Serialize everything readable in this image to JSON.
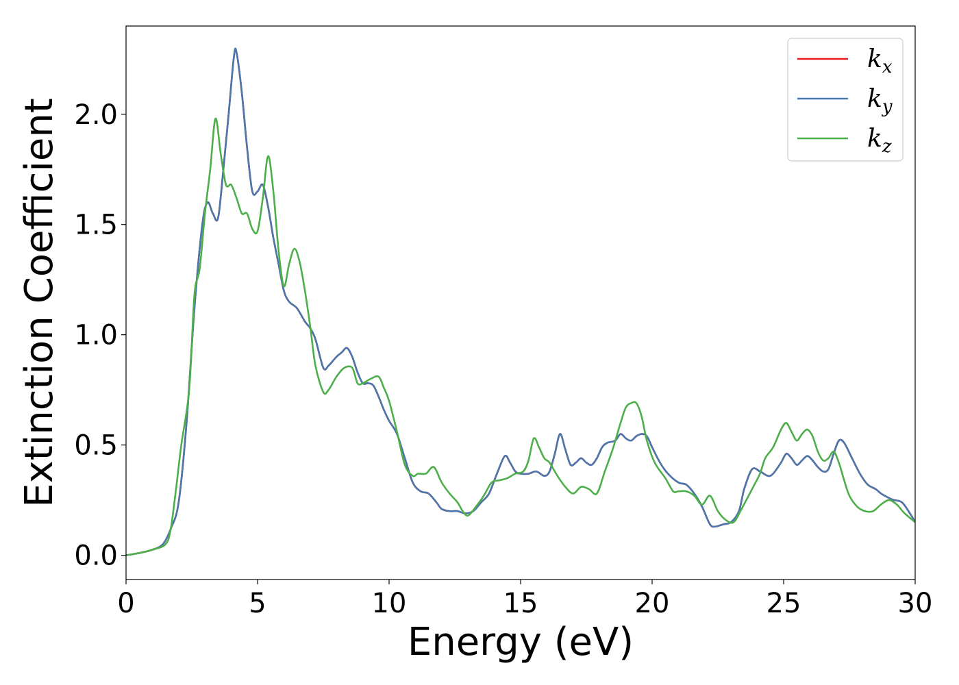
{
  "chart_data": {
    "type": "line",
    "xlabel": "Energy (eV)",
    "ylabel": "Extinction Coefficient",
    "xlim": [
      0,
      30
    ],
    "ylim": [
      -0.11,
      2.4
    ],
    "xticks": [
      0,
      5,
      10,
      15,
      20,
      25,
      30
    ],
    "xtick_labels": [
      "0",
      "5",
      "10",
      "15",
      "20",
      "25",
      "30"
    ],
    "yticks": [
      0.0,
      0.5,
      1.0,
      1.5,
      2.0
    ],
    "ytick_labels": [
      "0.0",
      "0.5",
      "1.0",
      "1.5",
      "2.0"
    ],
    "grid": false,
    "legend_position": "top-right",
    "series": [
      {
        "name": "k_x",
        "legend_base": "k",
        "legend_sub": "x",
        "color": "#e41a1c",
        "x": [
          0,
          0.5,
          1.0,
          1.4,
          1.7,
          2.0,
          2.3,
          2.6,
          2.9,
          3.1,
          3.3,
          3.5,
          3.7,
          3.9,
          4.1,
          4.2,
          4.4,
          4.6,
          4.8,
          5.0,
          5.2,
          5.4,
          5.6,
          5.8,
          6.0,
          6.2,
          6.5,
          6.8,
          7.0,
          7.2,
          7.5,
          7.7,
          8.0,
          8.2,
          8.4,
          8.6,
          8.8,
          9.0,
          9.2,
          9.4,
          9.6,
          9.8,
          10.0,
          10.3,
          10.6,
          10.9,
          11.2,
          11.5,
          11.8,
          12.0,
          12.3,
          12.6,
          12.9,
          13.2,
          13.5,
          13.8,
          14.1,
          14.4,
          14.6,
          14.8,
          15.0,
          15.3,
          15.6,
          15.9,
          16.1,
          16.3,
          16.5,
          16.7,
          16.9,
          17.1,
          17.3,
          17.5,
          17.7,
          17.9,
          18.1,
          18.3,
          18.6,
          18.8,
          19.0,
          19.2,
          19.4,
          19.6,
          19.8,
          20.0,
          20.3,
          20.6,
          21.0,
          21.3,
          21.6,
          21.9,
          22.2,
          22.4,
          22.7,
          23.0,
          23.3,
          23.5,
          23.8,
          24.1,
          24.4,
          24.6,
          24.9,
          25.1,
          25.3,
          25.5,
          25.7,
          25.9,
          26.1,
          26.3,
          26.5,
          26.7,
          26.9,
          27.1,
          27.3,
          27.6,
          27.9,
          28.2,
          28.5,
          28.7,
          29.0,
          29.2,
          29.5,
          29.8,
          30.0
        ],
        "y": [
          0,
          0.01,
          0.025,
          0.05,
          0.12,
          0.24,
          0.6,
          1.12,
          1.5,
          1.6,
          1.55,
          1.53,
          1.75,
          2.0,
          2.26,
          2.28,
          2.1,
          1.85,
          1.65,
          1.65,
          1.68,
          1.58,
          1.44,
          1.32,
          1.2,
          1.15,
          1.12,
          1.06,
          1.03,
          0.98,
          0.85,
          0.86,
          0.9,
          0.92,
          0.94,
          0.9,
          0.83,
          0.78,
          0.78,
          0.77,
          0.72,
          0.66,
          0.61,
          0.55,
          0.44,
          0.33,
          0.29,
          0.28,
          0.24,
          0.21,
          0.2,
          0.2,
          0.19,
          0.2,
          0.24,
          0.28,
          0.37,
          0.45,
          0.42,
          0.38,
          0.37,
          0.37,
          0.38,
          0.36,
          0.38,
          0.46,
          0.55,
          0.48,
          0.41,
          0.42,
          0.44,
          0.42,
          0.41,
          0.44,
          0.49,
          0.51,
          0.52,
          0.55,
          0.53,
          0.52,
          0.54,
          0.55,
          0.54,
          0.49,
          0.42,
          0.37,
          0.33,
          0.32,
          0.28,
          0.22,
          0.14,
          0.13,
          0.14,
          0.15,
          0.2,
          0.3,
          0.39,
          0.38,
          0.36,
          0.37,
          0.42,
          0.46,
          0.44,
          0.41,
          0.43,
          0.45,
          0.43,
          0.4,
          0.38,
          0.39,
          0.46,
          0.52,
          0.51,
          0.44,
          0.37,
          0.32,
          0.3,
          0.28,
          0.26,
          0.25,
          0.24,
          0.19,
          0.15
        ]
      },
      {
        "name": "k_y",
        "legend_base": "k",
        "legend_sub": "y",
        "color": "#4a78ad",
        "x": [
          0,
          0.5,
          1.0,
          1.4,
          1.7,
          2.0,
          2.3,
          2.6,
          2.9,
          3.1,
          3.3,
          3.5,
          3.7,
          3.9,
          4.1,
          4.2,
          4.4,
          4.6,
          4.8,
          5.0,
          5.2,
          5.4,
          5.6,
          5.8,
          6.0,
          6.2,
          6.5,
          6.8,
          7.0,
          7.2,
          7.5,
          7.7,
          8.0,
          8.2,
          8.4,
          8.6,
          8.8,
          9.0,
          9.2,
          9.4,
          9.6,
          9.8,
          10.0,
          10.3,
          10.6,
          10.9,
          11.2,
          11.5,
          11.8,
          12.0,
          12.3,
          12.6,
          12.9,
          13.2,
          13.5,
          13.8,
          14.1,
          14.4,
          14.6,
          14.8,
          15.0,
          15.3,
          15.6,
          15.9,
          16.1,
          16.3,
          16.5,
          16.7,
          16.9,
          17.1,
          17.3,
          17.5,
          17.7,
          17.9,
          18.1,
          18.3,
          18.6,
          18.8,
          19.0,
          19.2,
          19.4,
          19.6,
          19.8,
          20.0,
          20.3,
          20.6,
          21.0,
          21.3,
          21.6,
          21.9,
          22.2,
          22.4,
          22.7,
          23.0,
          23.3,
          23.5,
          23.8,
          24.1,
          24.4,
          24.6,
          24.9,
          25.1,
          25.3,
          25.5,
          25.7,
          25.9,
          26.1,
          26.3,
          26.5,
          26.7,
          26.9,
          27.1,
          27.3,
          27.6,
          27.9,
          28.2,
          28.5,
          28.7,
          29.0,
          29.2,
          29.5,
          29.8,
          30.0
        ],
        "y": [
          0,
          0.01,
          0.025,
          0.05,
          0.12,
          0.24,
          0.6,
          1.12,
          1.5,
          1.6,
          1.55,
          1.53,
          1.75,
          2.0,
          2.26,
          2.28,
          2.1,
          1.85,
          1.65,
          1.65,
          1.68,
          1.58,
          1.44,
          1.32,
          1.2,
          1.15,
          1.12,
          1.06,
          1.03,
          0.98,
          0.85,
          0.86,
          0.9,
          0.92,
          0.94,
          0.9,
          0.83,
          0.78,
          0.78,
          0.77,
          0.72,
          0.66,
          0.61,
          0.55,
          0.44,
          0.33,
          0.29,
          0.28,
          0.24,
          0.21,
          0.2,
          0.2,
          0.19,
          0.2,
          0.24,
          0.28,
          0.37,
          0.45,
          0.42,
          0.38,
          0.37,
          0.37,
          0.38,
          0.36,
          0.38,
          0.46,
          0.55,
          0.48,
          0.41,
          0.42,
          0.44,
          0.42,
          0.41,
          0.44,
          0.49,
          0.51,
          0.52,
          0.55,
          0.53,
          0.52,
          0.54,
          0.55,
          0.54,
          0.49,
          0.42,
          0.37,
          0.33,
          0.32,
          0.28,
          0.22,
          0.14,
          0.13,
          0.14,
          0.15,
          0.2,
          0.3,
          0.39,
          0.38,
          0.36,
          0.37,
          0.42,
          0.46,
          0.44,
          0.41,
          0.43,
          0.45,
          0.43,
          0.4,
          0.38,
          0.39,
          0.46,
          0.52,
          0.51,
          0.44,
          0.37,
          0.32,
          0.3,
          0.28,
          0.26,
          0.25,
          0.24,
          0.19,
          0.15
        ]
      },
      {
        "name": "k_z",
        "legend_base": "k",
        "legend_sub": "z",
        "color": "#4daf4a",
        "x": [
          0,
          0.5,
          1.0,
          1.5,
          1.7,
          1.9,
          2.1,
          2.4,
          2.6,
          2.8,
          3.0,
          3.2,
          3.4,
          3.6,
          3.8,
          4.0,
          4.2,
          4.4,
          4.6,
          4.8,
          5.0,
          5.2,
          5.4,
          5.6,
          5.8,
          6.0,
          6.2,
          6.4,
          6.6,
          6.8,
          7.0,
          7.2,
          7.5,
          7.7,
          8.0,
          8.3,
          8.6,
          8.8,
          9.0,
          9.3,
          9.6,
          9.8,
          10.0,
          10.3,
          10.6,
          10.9,
          11.1,
          11.4,
          11.7,
          12.0,
          12.3,
          12.6,
          12.8,
          13.0,
          13.3,
          13.6,
          13.9,
          14.2,
          14.5,
          14.8,
          15.1,
          15.3,
          15.5,
          15.7,
          15.9,
          16.1,
          16.4,
          16.7,
          17.0,
          17.3,
          17.6,
          17.9,
          18.2,
          18.5,
          18.8,
          19.0,
          19.2,
          19.4,
          19.6,
          19.8,
          20.1,
          20.5,
          20.8,
          21.0,
          21.3,
          21.6,
          21.9,
          22.2,
          22.5,
          22.8,
          23.1,
          23.4,
          23.8,
          24.1,
          24.3,
          24.6,
          24.9,
          25.1,
          25.3,
          25.5,
          25.7,
          25.9,
          26.1,
          26.3,
          26.5,
          26.7,
          26.9,
          27.1,
          27.3,
          27.5,
          27.8,
          28.1,
          28.4,
          28.7,
          29.0,
          29.3,
          29.6,
          30.0
        ],
        "y": [
          0,
          0.01,
          0.025,
          0.05,
          0.12,
          0.3,
          0.5,
          0.75,
          1.18,
          1.3,
          1.55,
          1.75,
          1.98,
          1.82,
          1.68,
          1.68,
          1.62,
          1.55,
          1.55,
          1.48,
          1.47,
          1.62,
          1.81,
          1.65,
          1.38,
          1.22,
          1.32,
          1.39,
          1.33,
          1.2,
          1.04,
          0.86,
          0.74,
          0.75,
          0.81,
          0.85,
          0.85,
          0.78,
          0.78,
          0.8,
          0.81,
          0.76,
          0.7,
          0.56,
          0.41,
          0.36,
          0.37,
          0.37,
          0.4,
          0.33,
          0.28,
          0.24,
          0.2,
          0.18,
          0.22,
          0.27,
          0.33,
          0.34,
          0.35,
          0.37,
          0.38,
          0.43,
          0.53,
          0.49,
          0.44,
          0.42,
          0.36,
          0.31,
          0.28,
          0.31,
          0.3,
          0.28,
          0.38,
          0.48,
          0.6,
          0.67,
          0.69,
          0.69,
          0.63,
          0.52,
          0.42,
          0.35,
          0.29,
          0.29,
          0.29,
          0.27,
          0.23,
          0.27,
          0.2,
          0.16,
          0.15,
          0.21,
          0.3,
          0.37,
          0.44,
          0.49,
          0.57,
          0.6,
          0.56,
          0.52,
          0.55,
          0.57,
          0.54,
          0.47,
          0.43,
          0.44,
          0.47,
          0.42,
          0.34,
          0.27,
          0.22,
          0.2,
          0.2,
          0.23,
          0.25,
          0.23,
          0.19,
          0.15
        ]
      }
    ]
  }
}
